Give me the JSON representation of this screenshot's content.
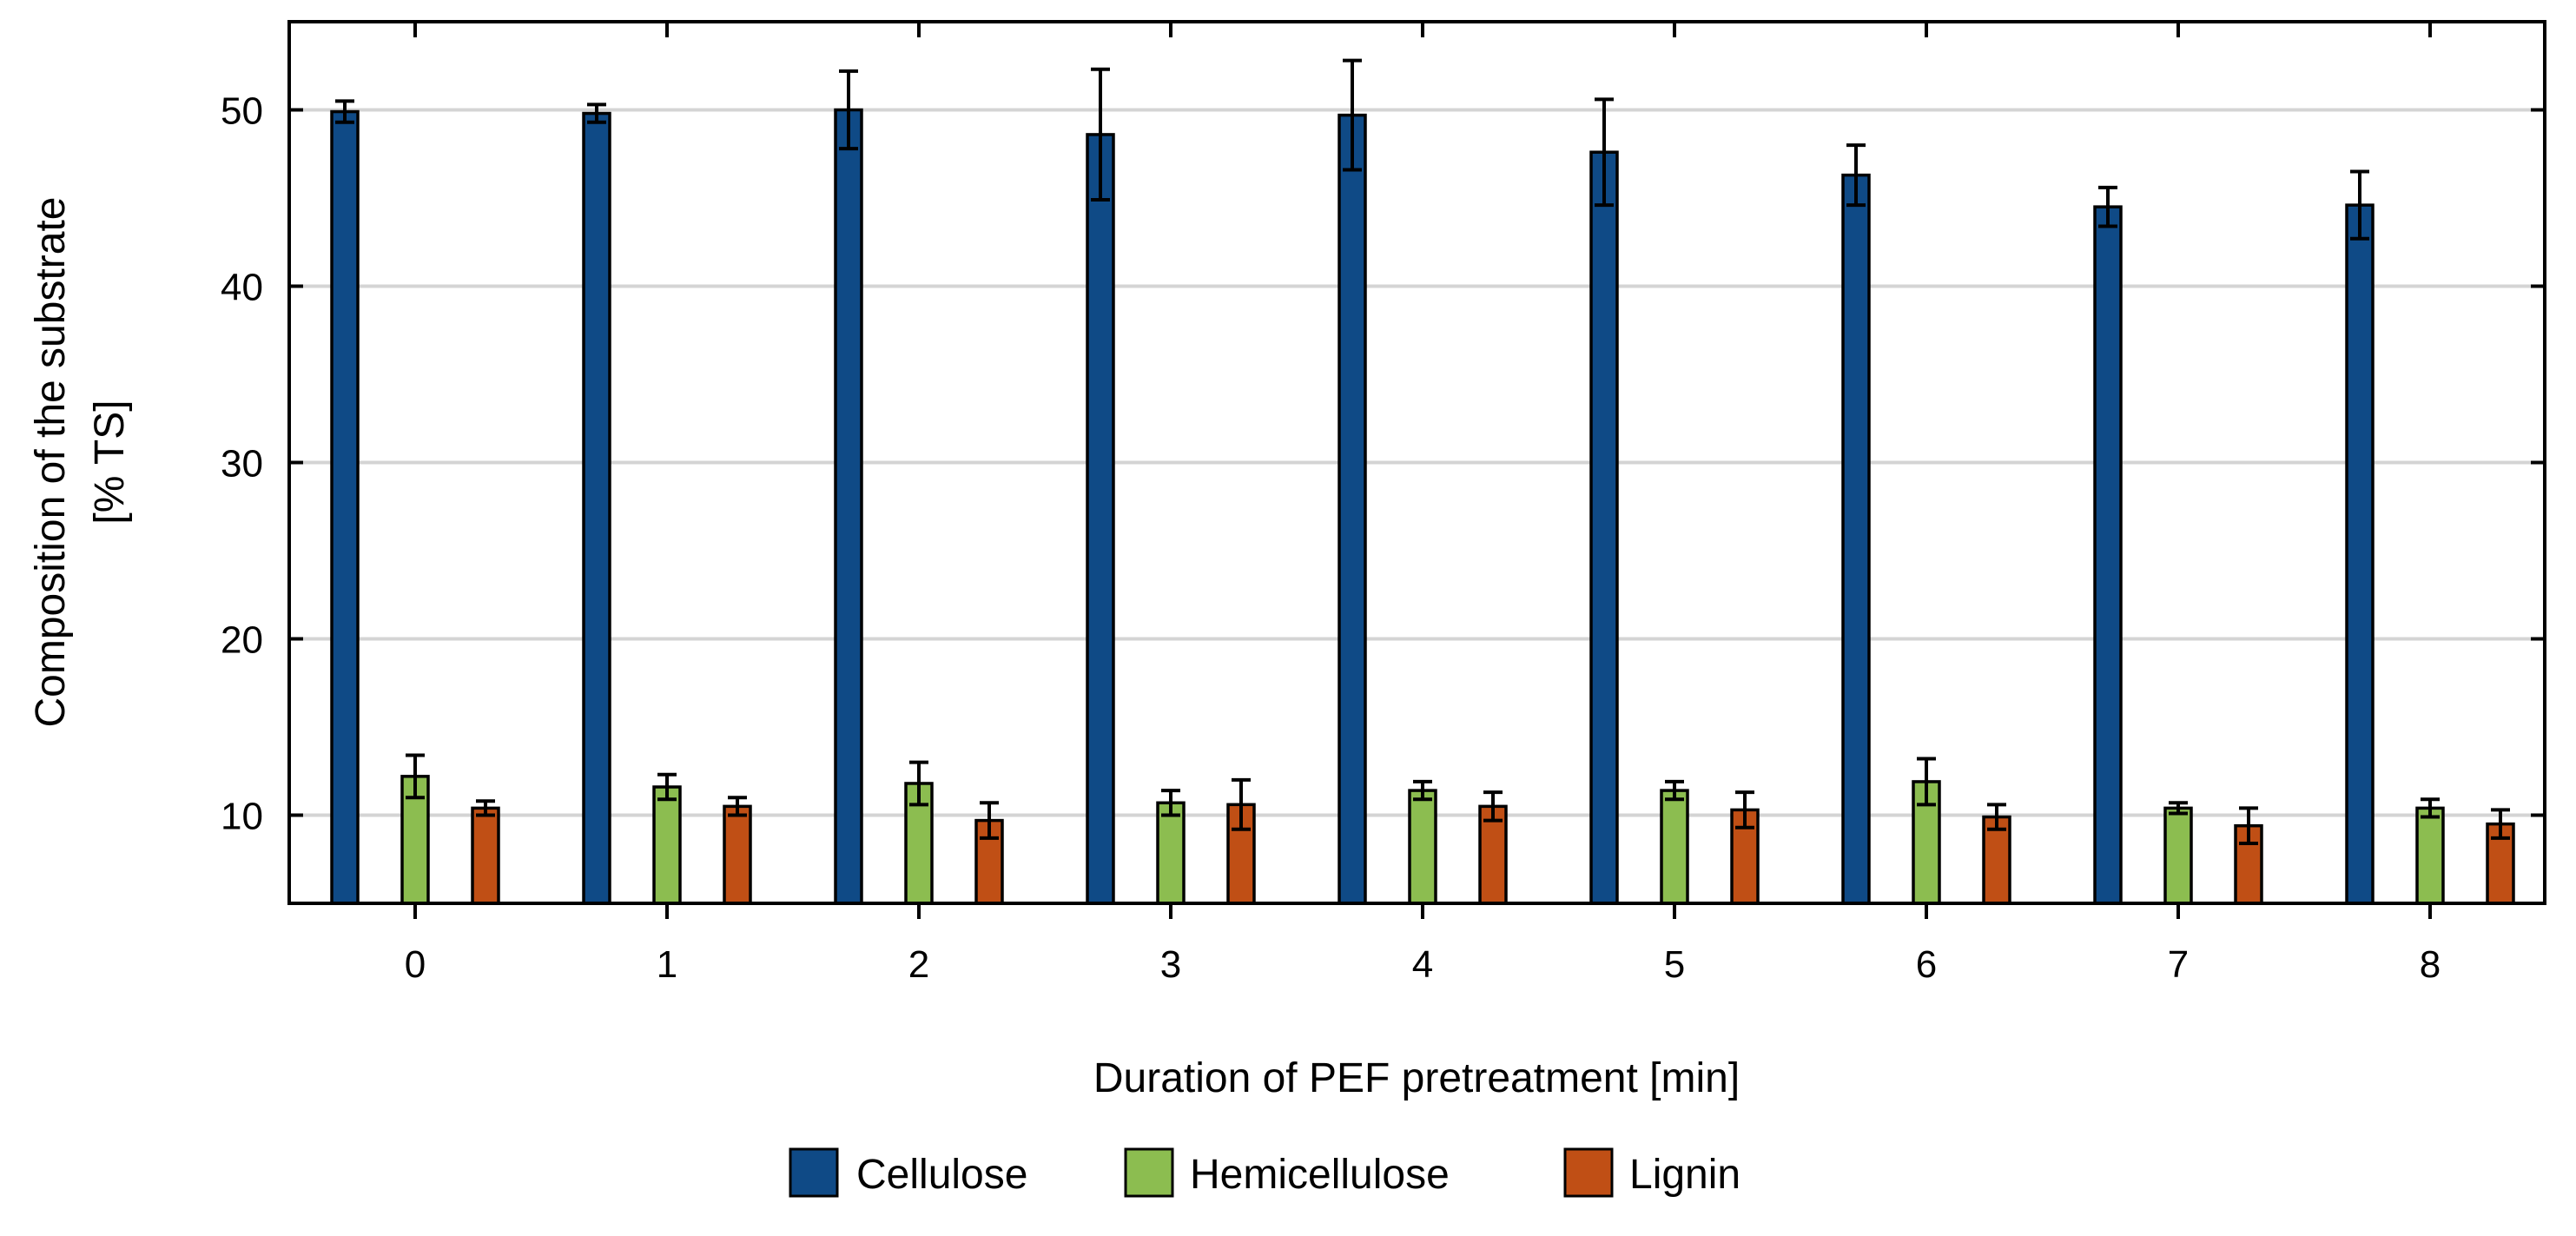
{
  "chart_data": {
    "type": "bar",
    "title": "",
    "xlabel": "Duration of PEF pretreatment [min]",
    "ylabel_line1": "Composition of the substrate",
    "ylabel_line2": "[% TS]",
    "categories": [
      "0",
      "1",
      "2",
      "3",
      "4",
      "5",
      "6",
      "7",
      "8"
    ],
    "ylim": [
      5,
      55
    ],
    "yticks": [
      10,
      20,
      30,
      40,
      50
    ],
    "grid": true,
    "legend_position": "bottom-center",
    "series": [
      {
        "name": "Cellulose",
        "color": "#0f4a86",
        "values": [
          49.9,
          49.8,
          50.0,
          48.6,
          49.7,
          47.6,
          46.3,
          44.5,
          44.6
        ],
        "errors": [
          0.6,
          0.5,
          2.2,
          3.7,
          3.1,
          3.0,
          1.7,
          1.1,
          1.9
        ]
      },
      {
        "name": "Hemicellulose",
        "color": "#8cbd50",
        "values": [
          12.2,
          11.6,
          11.8,
          10.7,
          11.4,
          11.4,
          11.9,
          10.4,
          10.4
        ],
        "errors": [
          1.2,
          0.7,
          1.2,
          0.7,
          0.5,
          0.5,
          1.3,
          0.3,
          0.5
        ]
      },
      {
        "name": "Lignin",
        "color": "#c04f15",
        "values": [
          10.4,
          10.5,
          9.7,
          10.6,
          10.5,
          10.3,
          9.9,
          9.4,
          9.5
        ],
        "errors": [
          0.4,
          0.5,
          1.0,
          1.4,
          0.8,
          1.0,
          0.7,
          1.0,
          0.8
        ]
      }
    ]
  }
}
